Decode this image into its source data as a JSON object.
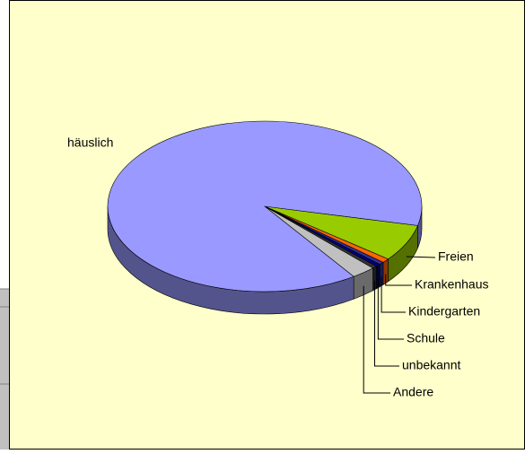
{
  "chart_data": {
    "type": "pie",
    "categories": [
      "häuslich",
      "Freien",
      "Krankenhaus",
      "Kindergarten",
      "Schule",
      "unbekannt",
      "Andere"
    ],
    "values": [
      88.2,
      7,
      0.8,
      0.5,
      0.5,
      0.5,
      2.5
    ],
    "colors": [
      "#9999ff",
      "#99cc00",
      "#ff6600",
      "#333399",
      "#000080",
      "#333333",
      "#c0c0c0"
    ]
  }
}
